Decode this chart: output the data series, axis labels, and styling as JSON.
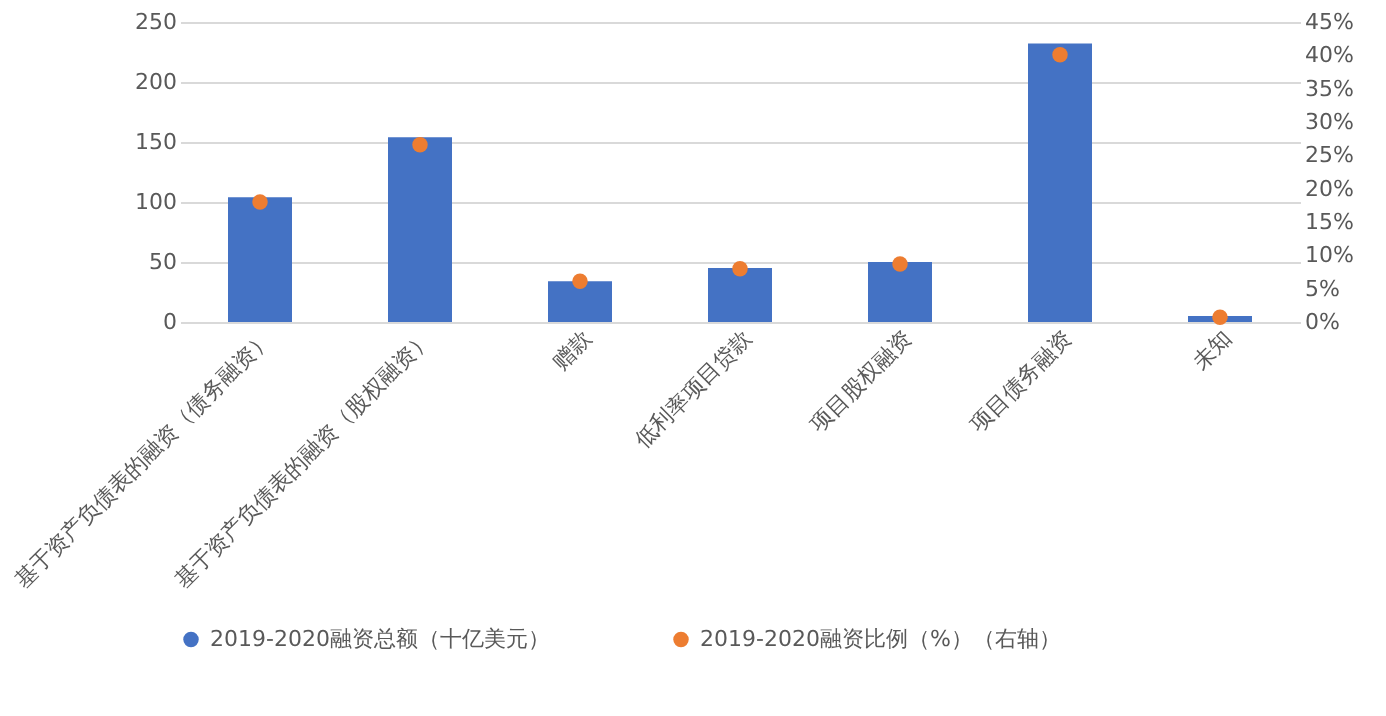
{
  "chart_data": {
    "type": "bar",
    "categories": [
      "基于资产负债表的融资（债务融资）",
      "基于资产负债表的融资（股权融资）",
      "赠款",
      "低利率项目贷款",
      "项目股权融资",
      "项目债务融资",
      "未知"
    ],
    "series": [
      {
        "name": "2019-2020融资总额（十亿美元）",
        "color": "#4472c4",
        "values": [
          104,
          154,
          34,
          45,
          50,
          232,
          5
        ]
      },
      {
        "name": "2019-2020融资比例（%）（右轴）",
        "type": "scatter",
        "axis": "y2",
        "color": "#ed7d31",
        "values": [
          18,
          26.6,
          6.1,
          8,
          8.7,
          40.1,
          0.7
        ]
      }
    ],
    "ylim": [
      0,
      250
    ],
    "yticks": [
      0,
      50,
      100,
      150,
      200,
      250
    ],
    "y2lim": [
      0,
      45
    ],
    "y2ticks": [
      {
        "value": 0,
        "label": "0%"
      },
      {
        "value": 5,
        "label": "5%"
      },
      {
        "value": 10,
        "label": "10%"
      },
      {
        "value": 15,
        "label": "15%"
      },
      {
        "value": 20,
        "label": "20%"
      },
      {
        "value": 25,
        "label": "25%"
      },
      {
        "value": 30,
        "label": "30%"
      },
      {
        "value": 35,
        "label": "35%"
      },
      {
        "value": 40,
        "label": "40%"
      },
      {
        "value": 45,
        "label": "45%"
      }
    ],
    "grid": "y",
    "legend": "bottom",
    "marker": "circle"
  }
}
